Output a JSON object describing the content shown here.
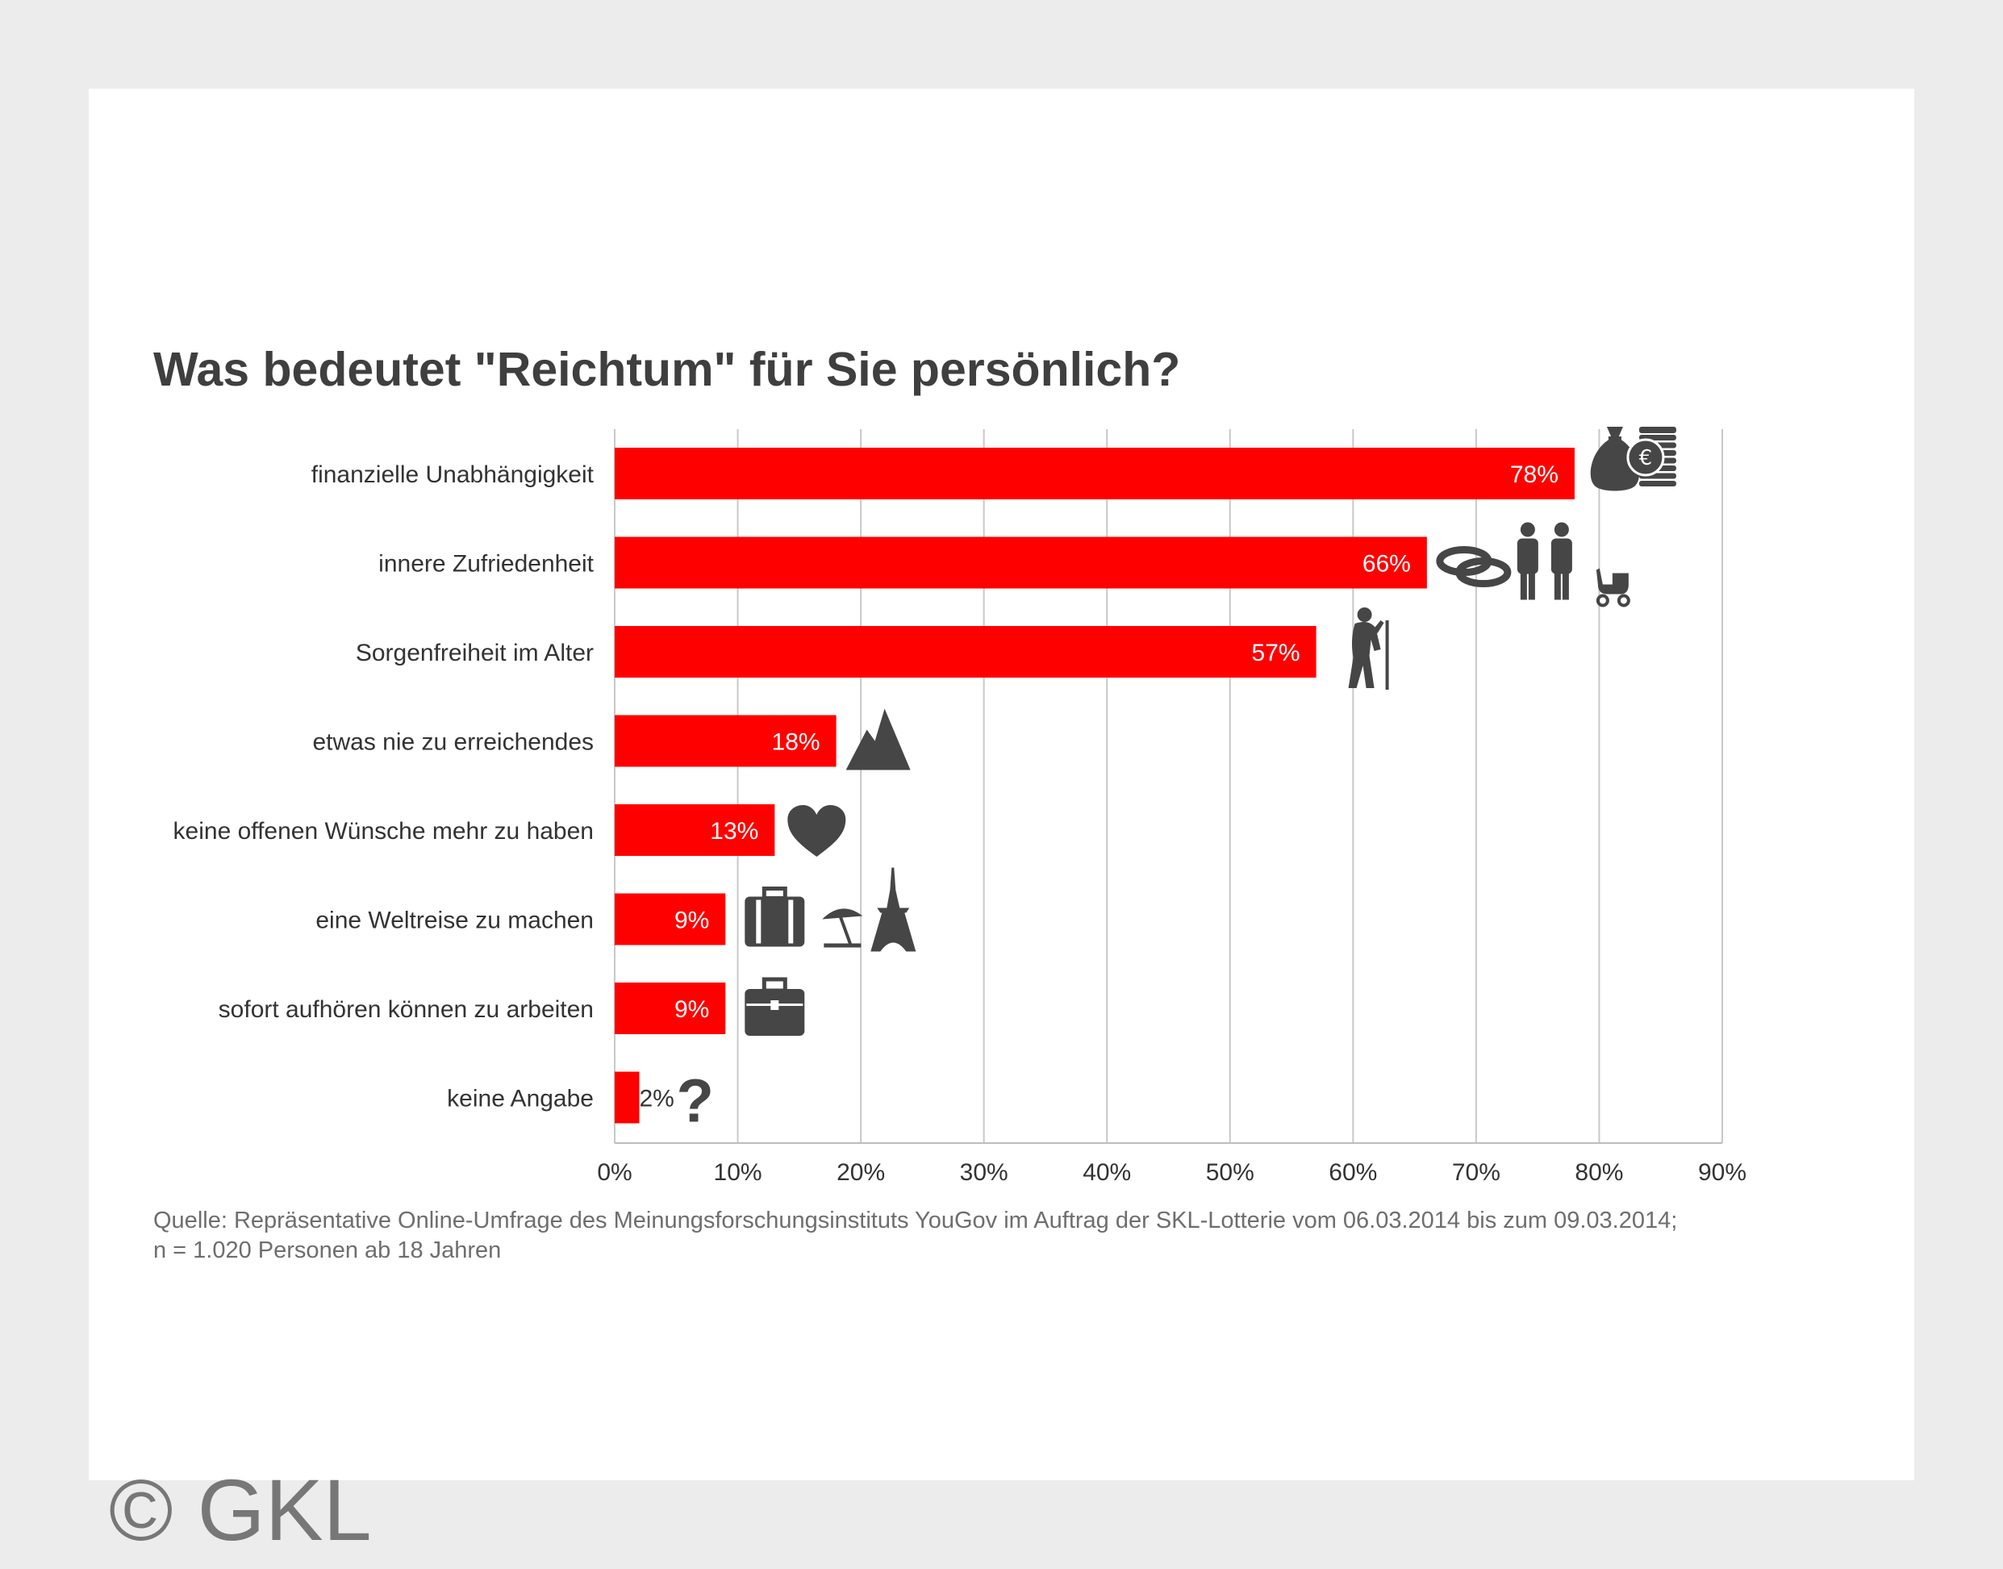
{
  "chart_data": {
    "type": "bar",
    "orientation": "horizontal",
    "title": "Was bedeutet \"Reichtum\" für Sie persönlich?",
    "categories": [
      "finanzielle Unabhängigkeit",
      "innere Zufriedenheit",
      "Sorgenfreiheit im Alter",
      "etwas nie zu erreichendes",
      "keine offenen Wünsche mehr zu haben",
      "eine Weltreise zu machen",
      "sofort aufhören können zu arbeiten",
      "keine Angabe"
    ],
    "values": [
      78,
      66,
      57,
      18,
      13,
      9,
      9,
      2
    ],
    "value_labels": [
      "78%",
      "66%",
      "57%",
      "18%",
      "13%",
      "9%",
      "9%",
      "2%"
    ],
    "icons": [
      [
        "money-bag-euro-coins-icon"
      ],
      [
        "wedding-rings-icon",
        "couple-icon",
        "baby-stroller-icon"
      ],
      [
        "elderly-person-with-cane-icon"
      ],
      [
        "mountain-icon"
      ],
      [
        "heart-icon"
      ],
      [
        "suitcase-icon",
        "beach-umbrella-icon",
        "eiffel-tower-icon"
      ],
      [
        "briefcase-icon"
      ],
      [
        "question-mark-icon"
      ]
    ],
    "xlim": [
      0,
      90
    ],
    "xticks": [
      0,
      10,
      20,
      30,
      40,
      50,
      60,
      70,
      80,
      90
    ],
    "xtick_labels": [
      "0%",
      "10%",
      "20%",
      "30%",
      "40%",
      "50%",
      "60%",
      "70%",
      "80%",
      "90%"
    ],
    "grid": true,
    "bar_color": "#ff0000",
    "xlabel": "",
    "ylabel": ""
  },
  "question_mark_glyph": "?",
  "source": {
    "line1": "Quelle: Repräsentative Online-Umfrage des Meinungsforschungsinstituts YouGov im Auftrag der SKL-Lotterie vom 06.03.2014 bis zum 09.03.2014;",
    "line2": "n = 1.020 Personen ab 18 Jahren"
  },
  "copyright": "© GKL",
  "colors": {
    "background": "#ececec",
    "card": "#ffffff",
    "bar": "#ff0000",
    "icon": "#464646",
    "text": "#333333"
  }
}
